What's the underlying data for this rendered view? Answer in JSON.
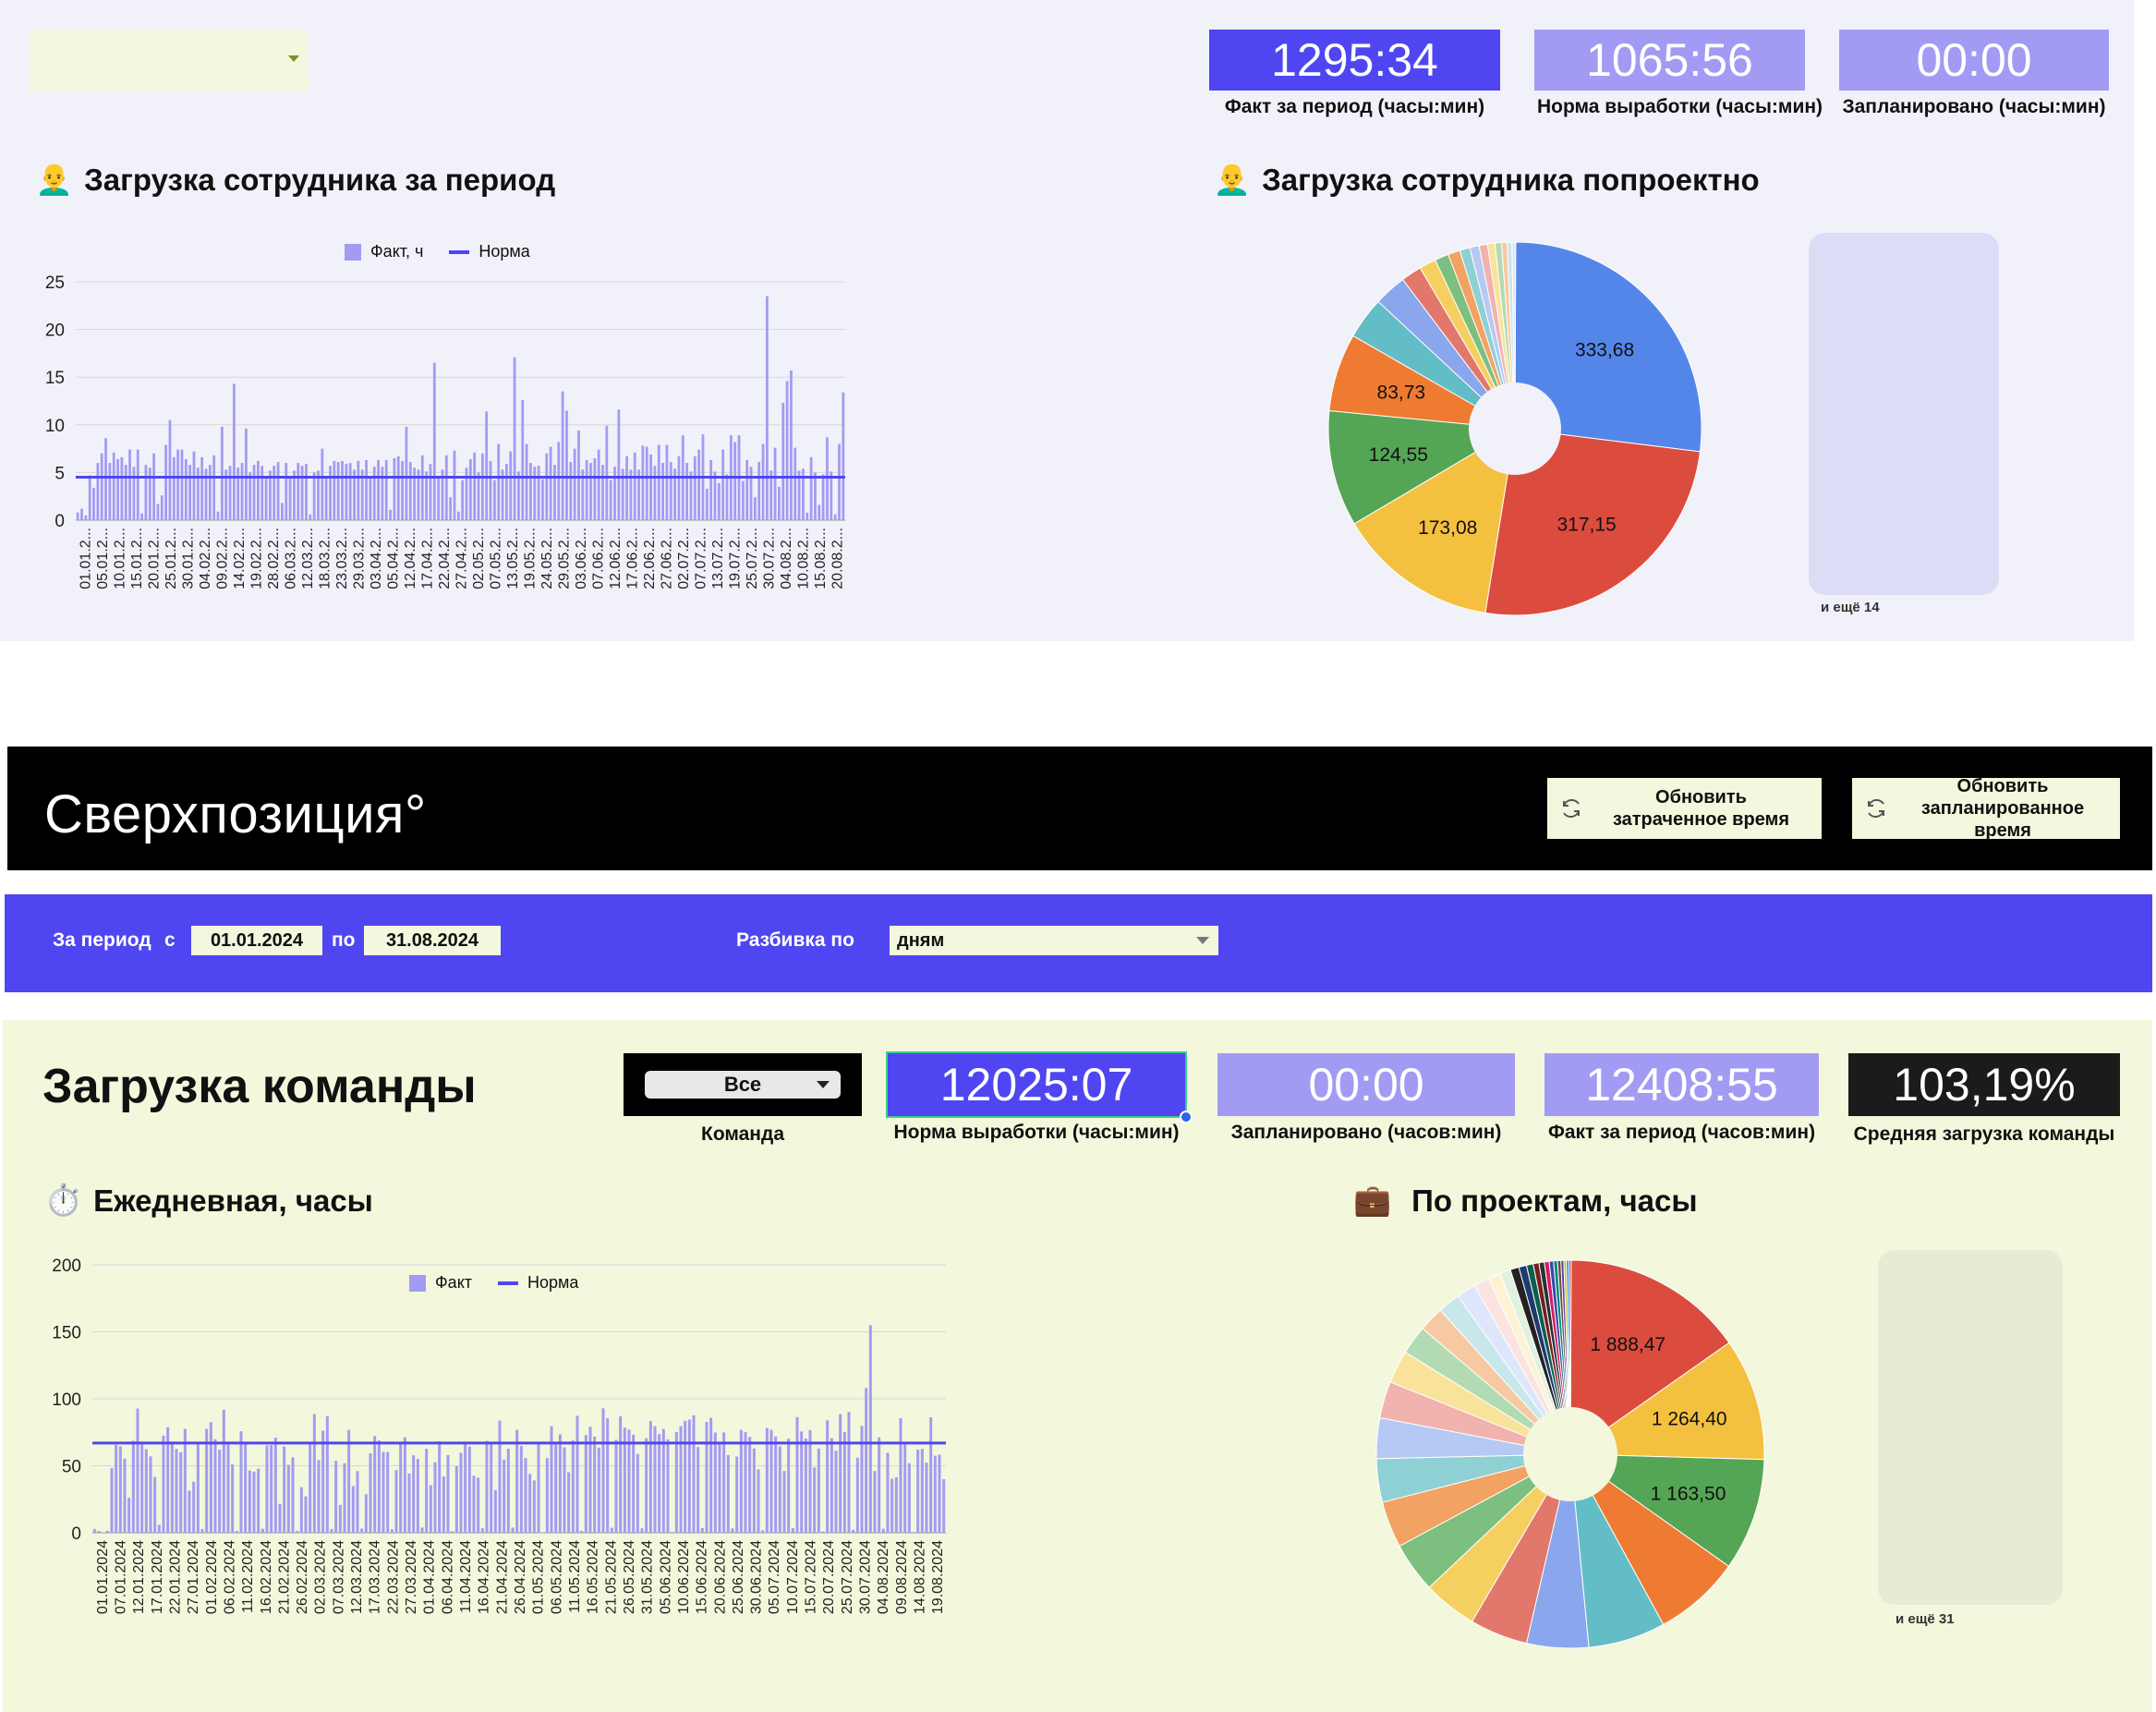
{
  "employee": {
    "selector": {
      "value": ""
    },
    "kpis": [
      {
        "value": "1295:34",
        "label": "Факт за период (часы:мин)",
        "color": "#4f46f2"
      },
      {
        "value": "1065:56",
        "label": "Норма выработки (часы:мин)",
        "color": "#a29bf3"
      },
      {
        "value": "00:00",
        "label": "Запланировано (часы:мин)",
        "color": "#a29bf3"
      }
    ],
    "load_title": "Загрузка сотрудника  за период",
    "project_title": "Загрузка сотрудника попроектно",
    "more_label": "и ещё 14"
  },
  "brand": {
    "name": "Сверхпозиция°",
    "refresh_spent": [
      "Обновить",
      "затраченное время"
    ],
    "refresh_planned": [
      "Обновить",
      "запланированное время"
    ]
  },
  "filters": {
    "period_label": "За период",
    "from_label": "с",
    "date_from": "01.01.2024",
    "to_label": "по",
    "date_to": "31.08.2024",
    "split_label": "Разбивка по",
    "split_value": "дням"
  },
  "team": {
    "title": "Загрузка команды",
    "team_select": {
      "value": "Все",
      "label": "Команда"
    },
    "kpis": [
      {
        "value": "12025:07",
        "label": "Норма выработки (часы:мин)",
        "color": "#4f46f2"
      },
      {
        "value": "00:00",
        "label": "Запланировано (часов:мин)",
        "color": "#a29bf3"
      },
      {
        "value": "12408:55",
        "label": "Факт за период (часов:мин)",
        "color": "#a29bf3"
      },
      {
        "value": "103,19%",
        "label": "Средняя загрузка команды",
        "color": "#1b1b1b"
      }
    ],
    "daily_title": "Ежедневная, часы",
    "projects_title": "По проектам, часы",
    "more_label": "и ещё 31"
  },
  "chart_data": [
    {
      "type": "bar",
      "id": "employee-daily",
      "legend": [
        "Факт, ч",
        "Норма"
      ],
      "series": [
        {
          "name": "Факт, ч",
          "values": [
            0.8,
            1.2,
            0.5,
            4.7,
            3.4,
            6.0,
            7.0,
            8.6,
            6.0,
            7.1,
            6.4,
            6.6,
            5.8,
            7.4,
            5.6,
            7.4,
            0.7,
            5.8,
            5.5,
            7.0,
            1.7,
            2.6,
            7.9,
            10.5,
            6.6,
            7.4,
            7.4,
            6.4,
            5.8,
            7.2,
            5.5,
            6.6,
            5.4,
            5.8,
            6.8,
            0.9,
            9.8,
            5.3,
            5.7,
            14.3,
            5.5,
            6.0,
            9.6,
            5.0,
            5.8,
            6.2,
            5.7,
            4.6,
            5.2,
            5.7,
            6.1,
            1.8,
            6.0,
            4.4,
            5.2,
            6.0,
            5.7,
            5.9,
            0.6,
            5.0,
            5.2,
            7.5,
            4.4,
            5.7,
            6.2,
            6.1,
            6.2,
            5.9,
            6.0,
            5.3,
            6.2,
            5.3,
            6.3,
            4.6,
            5.6,
            6.3,
            5.6,
            6.3,
            1.1,
            6.5,
            6.7,
            6.2,
            9.8,
            6.1,
            5.5,
            5.3,
            6.8,
            5.1,
            5.9,
            16.5,
            4.4,
            5.3,
            6.8,
            2.4,
            7.3,
            0.9,
            4.2,
            5.5,
            6.4,
            7.1,
            5.0,
            7.0,
            11.4,
            6.2,
            4.2,
            8.0,
            5.3,
            5.9,
            7.2,
            17.1,
            5.1,
            12.6,
            8.0,
            6.0,
            5.6,
            5.7,
            4.3,
            7.0,
            7.7,
            5.8,
            8.2,
            13.5,
            11.5,
            6.1,
            7.5,
            9.4,
            5.3,
            6.3,
            6.0,
            6.5,
            7.4,
            5.8,
            9.9,
            4.2,
            5.6,
            11.6,
            5.4,
            6.7,
            5.3,
            7.1,
            5.3,
            7.8,
            7.7,
            6.9,
            5.7,
            7.9,
            6.0,
            7.9,
            6.1,
            5.4,
            6.7,
            8.9,
            6.0,
            5.1,
            6.7,
            7.4,
            9.0,
            3.3,
            6.3,
            5.1,
            3.9,
            7.4,
            4.8,
            8.9,
            8.2,
            8.9,
            4.1,
            6.3,
            5.6,
            2.4,
            6.1,
            8.0,
            23.5,
            5.2,
            7.6,
            3.5,
            12.3,
            14.6,
            15.7,
            7.6,
            5.2,
            5.4,
            0.8,
            6.6,
            5.0,
            1.6,
            4.8,
            8.7,
            5.1,
            0.6,
            8.0,
            13.4
          ]
        },
        {
          "name": "Норма",
          "values": [
            4.5
          ]
        }
      ],
      "x_tick_labels": [
        "01.01.2...",
        "05.01.2...",
        "10.01.2...",
        "15.01.2...",
        "20.01.2...",
        "25.01.2...",
        "30.01.2...",
        "04.02.2...",
        "09.02.2...",
        "14.02.2...",
        "19.02.2...",
        "28.02.2...",
        "06.03.2...",
        "12.03.2...",
        "18.03.2...",
        "23.03.2...",
        "29.03.2...",
        "03.04.2...",
        "05.04.2...",
        "12.04.2...",
        "17.04.2...",
        "22.04.2...",
        "27.04.2...",
        "02.05.2...",
        "07.05.2...",
        "13.05.2...",
        "19.05.2...",
        "24.05.2...",
        "29.05.2...",
        "03.06.2...",
        "07.06.2...",
        "12.06.2...",
        "17.06.2...",
        "22.06.2...",
        "27.06.2...",
        "02.07.2...",
        "07.07.2...",
        "13.07.2...",
        "19.07.2...",
        "25.07.2...",
        "30.07.2...",
        "04.08.2...",
        "10.08.2...",
        "15.08.2...",
        "20.08.2..."
      ],
      "y_ticks": [
        0,
        5,
        10,
        15,
        20,
        25
      ],
      "ylim": [
        0,
        25
      ]
    },
    {
      "type": "pie",
      "id": "employee-projects",
      "donut": true,
      "slices": [
        {
          "value": 333.68,
          "label": "333,68",
          "color": "#5486ea"
        },
        {
          "value": 317.15,
          "label": "317,15",
          "color": "#dc4c3e"
        },
        {
          "value": 173.08,
          "label": "173,08",
          "color": "#f4c040"
        },
        {
          "value": 124.55,
          "label": "124,55",
          "color": "#54a555"
        },
        {
          "value": 83.73,
          "label": "83,73",
          "color": "#ee7b31"
        },
        {
          "value": 45,
          "color": "#62bdc6"
        },
        {
          "value": 35,
          "color": "#8aa7ee"
        },
        {
          "value": 22,
          "color": "#e2776c"
        },
        {
          "value": 18,
          "color": "#f5d061"
        },
        {
          "value": 15,
          "color": "#7dbf7e"
        },
        {
          "value": 13,
          "color": "#f2a263"
        },
        {
          "value": 11,
          "color": "#8fd0d4"
        },
        {
          "value": 10,
          "color": "#b6c9f4"
        },
        {
          "value": 9,
          "color": "#f0b3ad"
        },
        {
          "value": 8,
          "color": "#f9e29a"
        },
        {
          "value": 7,
          "color": "#b3dbb3"
        },
        {
          "value": 6,
          "color": "#f7c9a2"
        },
        {
          "value": 5,
          "color": "#c7e7ea"
        },
        {
          "value": 4,
          "color": "#dde6fb"
        }
      ]
    },
    {
      "type": "bar",
      "id": "team-daily",
      "legend": [
        "Факт",
        "Норма"
      ],
      "series": [
        {
          "name": "Факт",
          "values": [
            2.8,
            1.4,
            0.2,
            1.5,
            48.3,
            65.7,
            64.5,
            55.4,
            26.1,
            68.7,
            92.7,
            66.4,
            62.4,
            57.0,
            41.6,
            5.9,
            72.4,
            78.8,
            67.5,
            62.6,
            60.1,
            77.6,
            31.4,
            38.1,
            66.2,
            2.8,
            77.6,
            82.6,
            69.8,
            62.0,
            91.8,
            66.0,
            51.0,
            1.4,
            75.8,
            67.3,
            46.5,
            45.6,
            47.8,
            3.0,
            65.3,
            65.5,
            71.0,
            21.6,
            64.3,
            50.7,
            56.4,
            1.4,
            34.0,
            27.2,
            67.6,
            88.6,
            54.2,
            76.2,
            87.0,
            2.8,
            53.7,
            20.8,
            51.9,
            76.7,
            34.8,
            46.0,
            3.1,
            28.8,
            59.3,
            72.2,
            68.9,
            60.3,
            60.3,
            2.6,
            46.8,
            67.6,
            71.3,
            44.2,
            57.8,
            55.1,
            3.9,
            62.7,
            35.5,
            52.6,
            68.3,
            42.0,
            58.0,
            1.1,
            49.7,
            59.7,
            66.8,
            64.4,
            42.5,
            41.1,
            3.4,
            68.5,
            66.3,
            31.8,
            83.7,
            54.6,
            62.7,
            3.9,
            76.8,
            64.8,
            55.8,
            43.9,
            39.1,
            66.3,
            0.2,
            55.7,
            79.5,
            67.4,
            73.5,
            63.8,
            45.2,
            68.9,
            87.3,
            1.5,
            73.0,
            79.1,
            71.8,
            63.6,
            92.9,
            85.4,
            3.7,
            69.4,
            87.0,
            78.5,
            77.0,
            73.2,
            58.8,
            3.3,
            70.6,
            83.4,
            79.5,
            73.6,
            77.5,
            69.7,
            0.6,
            75.1,
            79.6,
            83.5,
            84.5,
            87.7,
            64.0,
            3.5,
            82.7,
            85.8,
            74.8,
            67.9,
            74.9,
            58.0,
            3.3,
            56.9,
            76.8,
            75.1,
            71.5,
            62.9,
            47.3,
            1.8,
            78.3,
            76.9,
            71.9,
            64.5,
            46.1,
            70.2,
            3.5,
            86.3,
            75.6,
            70.3,
            76.5,
            48.8,
            62.9,
            1.0,
            83.9,
            70.7,
            61.2,
            88.6,
            75.1,
            90.1,
            2.2,
            56.0,
            79.8,
            108.0,
            154.9,
            46.1,
            71.2,
            3.0,
            59.6,
            40.3,
            41.5,
            85.5,
            67.6,
            51.9,
            0.5,
            62.0,
            62.6,
            52.4,
            86.2,
            57.5,
            58.3,
            40.0
          ]
        },
        {
          "name": "Норма",
          "values": [
            67
          ]
        }
      ],
      "x_tick_labels": [
        "01.01.2024",
        "07.01.2024",
        "12.01.2024",
        "17.01.2024",
        "22.01.2024",
        "27.01.2024",
        "01.02.2024",
        "06.02.2024",
        "11.02.2024",
        "16.02.2024",
        "21.02.2024",
        "26.02.2024",
        "02.03.2024",
        "07.03.2024",
        "12.03.2024",
        "17.03.2024",
        "22.03.2024",
        "27.03.2024",
        "01.04.2024",
        "06.04.2024",
        "11.04.2024",
        "16.04.2024",
        "21.04.2024",
        "26.04.2024",
        "01.05.2024",
        "06.05.2024",
        "11.05.2024",
        "16.05.2024",
        "21.05.2024",
        "26.05.2024",
        "31.05.2024",
        "05.06.2024",
        "10.06.2024",
        "15.06.2024",
        "20.06.2024",
        "25.06.2024",
        "30.06.2024",
        "05.07.2024",
        "10.07.2024",
        "15.07.2024",
        "20.07.2024",
        "25.07.2024",
        "30.07.2024",
        "04.08.2024",
        "09.08.2024",
        "14.08.2024",
        "19.08.2024"
      ],
      "y_ticks": [
        0,
        50,
        100,
        150,
        200
      ],
      "ylim": [
        0,
        200
      ]
    },
    {
      "type": "pie",
      "id": "team-projects",
      "donut": true,
      "slices": [
        {
          "value": 1888.47,
          "label": "1 888,47",
          "color": "#dc4c3e"
        },
        {
          "value": 1264.4,
          "label": "1 264,40",
          "color": "#f4c040"
        },
        {
          "value": 1163.5,
          "label": "1 163,50",
          "color": "#54a555"
        },
        {
          "value": 900,
          "color": "#ee7b31"
        },
        {
          "value": 800,
          "color": "#62bdc6"
        },
        {
          "value": 640,
          "color": "#8aa7ee"
        },
        {
          "value": 600,
          "color": "#e2776c"
        },
        {
          "value": 560,
          "color": "#f5d061"
        },
        {
          "value": 520,
          "color": "#7dbf7e"
        },
        {
          "value": 480,
          "color": "#f2a263"
        },
        {
          "value": 450,
          "color": "#8fd0d4"
        },
        {
          "value": 420,
          "color": "#b6c9f4"
        },
        {
          "value": 380,
          "color": "#f0b3ad"
        },
        {
          "value": 340,
          "color": "#f9e29a"
        },
        {
          "value": 300,
          "color": "#b3dbb3"
        },
        {
          "value": 260,
          "color": "#f7c9a2"
        },
        {
          "value": 230,
          "color": "#c7e7ea"
        },
        {
          "value": 200,
          "color": "#dde6fb"
        },
        {
          "value": 160,
          "color": "#fbe3e0"
        },
        {
          "value": 130,
          "color": "#fdf3d4"
        },
        {
          "value": 110,
          "color": "#e0f1e0"
        },
        {
          "value": 90,
          "color": "#222222"
        },
        {
          "value": 80,
          "color": "#1f3b6e"
        },
        {
          "value": 70,
          "color": "#0e5e4f"
        },
        {
          "value": 60,
          "color": "#7a1c1c"
        },
        {
          "value": 55,
          "color": "#263238"
        },
        {
          "value": 50,
          "color": "#d81b60"
        },
        {
          "value": 45,
          "color": "#3949ab"
        },
        {
          "value": 40,
          "color": "#00897b"
        },
        {
          "value": 35,
          "color": "#6d4c41"
        },
        {
          "value": 30,
          "color": "#5e35b1"
        },
        {
          "value": 28,
          "color": "#c0ca33"
        },
        {
          "value": 25,
          "color": "#1e88e5"
        },
        {
          "value": 22,
          "color": "#e53935"
        }
      ]
    }
  ]
}
